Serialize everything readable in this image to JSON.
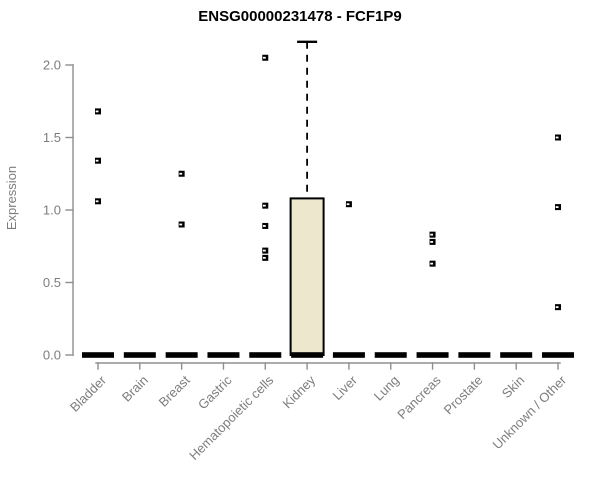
{
  "chart_data": {
    "type": "boxplot",
    "title": "ENSG00000231478 - FCF1P9",
    "ylabel": "Expression",
    "xlabel": "",
    "ylim": [
      0,
      2.16
    ],
    "grid": false,
    "legend": "none",
    "yticks": [
      0,
      0.5,
      1,
      1.5,
      2
    ],
    "ytick_labels": [
      "0.0",
      "0.5",
      "1.0",
      "1.5",
      "2.0"
    ],
    "categories": [
      "Bladder",
      "Brain",
      "Breast",
      "Gastric",
      "Hematopoietic cells",
      "Kidney",
      "Liver",
      "Lung",
      "Pancreas",
      "Prostate",
      "Skin",
      "Unknown / Other"
    ],
    "boxes": [
      {
        "category": "Bladder",
        "q1": 0,
        "median": 0,
        "q3": 0,
        "whisker_low": 0,
        "whisker_high": 0,
        "outliers": [
          1.68,
          1.34,
          1.06
        ]
      },
      {
        "category": "Brain",
        "q1": 0,
        "median": 0,
        "q3": 0,
        "whisker_low": 0,
        "whisker_high": 0,
        "outliers": []
      },
      {
        "category": "Breast",
        "q1": 0,
        "median": 0,
        "q3": 0,
        "whisker_low": 0,
        "whisker_high": 0,
        "outliers": [
          1.25,
          0.9
        ]
      },
      {
        "category": "Gastric",
        "q1": 0,
        "median": 0,
        "q3": 0,
        "whisker_low": 0,
        "whisker_high": 0,
        "outliers": []
      },
      {
        "category": "Hematopoietic cells",
        "q1": 0,
        "median": 0,
        "q3": 0,
        "whisker_low": 0,
        "whisker_high": 0,
        "outliers": [
          2.05,
          1.03,
          0.89,
          0.72,
          0.67
        ]
      },
      {
        "category": "Kidney",
        "q1": 0,
        "median": 0,
        "q3": 1.08,
        "whisker_low": 0,
        "whisker_high": 2.16,
        "outliers": []
      },
      {
        "category": "Liver",
        "q1": 0,
        "median": 0,
        "q3": 0,
        "whisker_low": 0,
        "whisker_high": 0,
        "outliers": [
          1.04
        ]
      },
      {
        "category": "Lung",
        "q1": 0,
        "median": 0,
        "q3": 0,
        "whisker_low": 0,
        "whisker_high": 0,
        "outliers": []
      },
      {
        "category": "Pancreas",
        "q1": 0,
        "median": 0,
        "q3": 0,
        "whisker_low": 0,
        "whisker_high": 0,
        "outliers": [
          0.83,
          0.78,
          0.63
        ]
      },
      {
        "category": "Prostate",
        "q1": 0,
        "median": 0,
        "q3": 0,
        "whisker_low": 0,
        "whisker_high": 0,
        "outliers": []
      },
      {
        "category": "Skin",
        "q1": 0,
        "median": 0,
        "q3": 0,
        "whisker_low": 0,
        "whisker_high": 0,
        "outliers": []
      },
      {
        "category": "Unknown / Other",
        "q1": 0,
        "median": 0,
        "q3": 0,
        "whisker_low": 0,
        "whisker_high": 0,
        "outliers": [
          1.5,
          1.02,
          0.33
        ]
      }
    ],
    "colors": {
      "title": "#000000",
      "axis": "#8f8f8f",
      "tick_label": "#7d7d7d",
      "box_fill": "#EDE7CD",
      "box_border": "#000000",
      "median_bar": "#000000",
      "outlier": "#000000",
      "outlier_center": "#ffffff",
      "background": "#ffffff"
    }
  }
}
